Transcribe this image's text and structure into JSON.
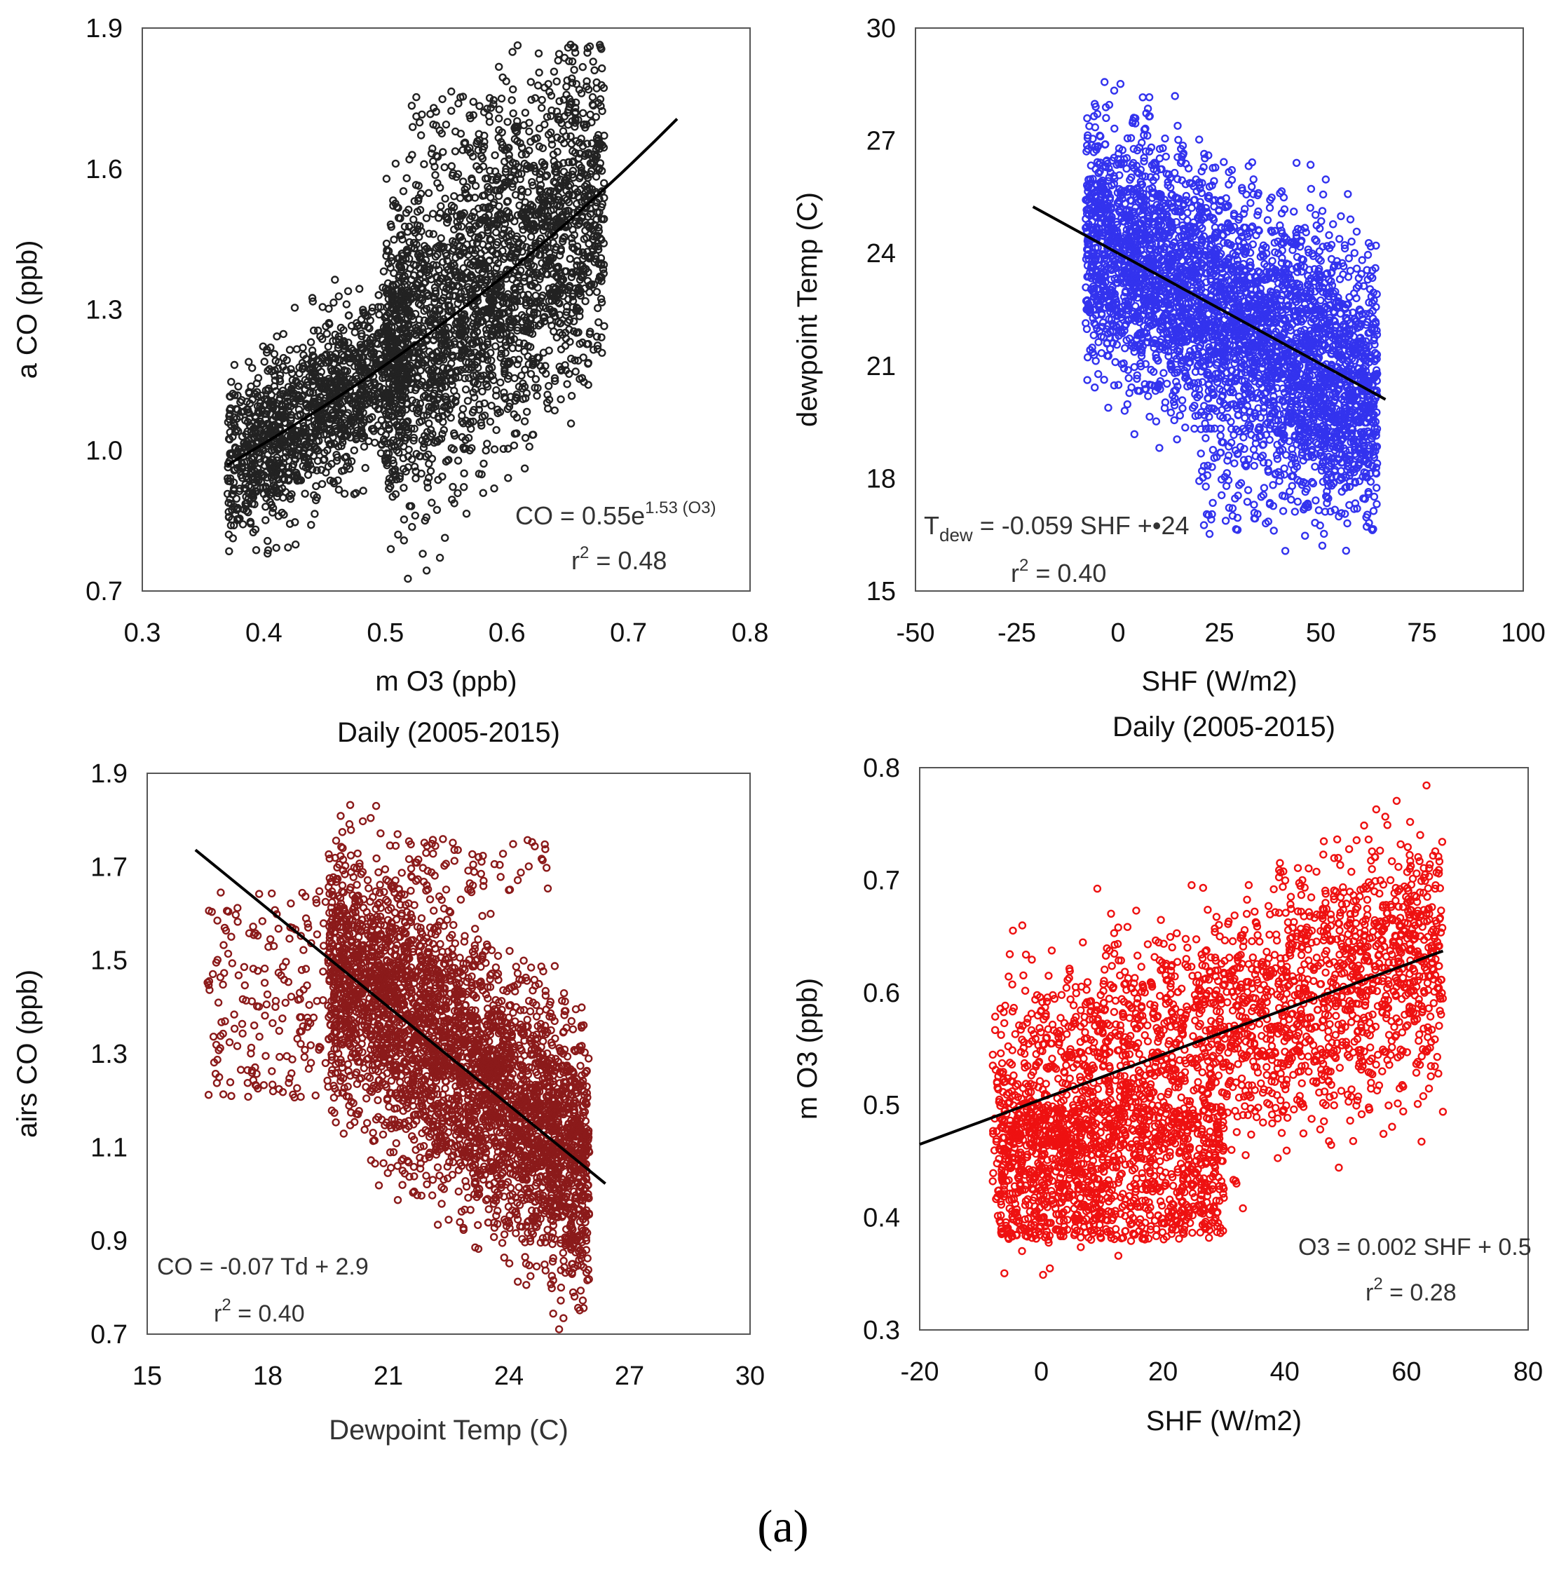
{
  "caption": "(a)",
  "chart_data": [
    {
      "type": "scatter",
      "id": "p1",
      "title": "",
      "xlabel": "m O3 (ppb)",
      "ylabel": "a CO (ppb)",
      "xlim": [
        0.3,
        0.8
      ],
      "ylim": [
        0.7,
        1.9
      ],
      "xticks": [
        "0.3",
        "0.4",
        "0.5",
        "0.6",
        "0.7",
        "0.8"
      ],
      "yticks": [
        "0.7",
        "1.0",
        "1.3",
        "1.6",
        "1.9"
      ],
      "marker_color": "#222222",
      "fit": {
        "kind": "exp",
        "a": 0.55,
        "b": 1.53,
        "x_range": [
          0.37,
          0.74
        ]
      },
      "cloud": [
        {
          "n": 1400,
          "x": [
            0.37,
            0.52
          ],
          "y_center": "fit",
          "y_spread": 0.09
        },
        {
          "n": 2200,
          "x": [
            0.5,
            0.68
          ],
          "y_center": "fit",
          "y_spread": 0.17
        },
        {
          "n": 40,
          "x": [
            0.52,
            0.6
          ],
          "y": [
            1.62,
            1.76
          ]
        }
      ],
      "annotations": [
        {
          "prefix": "CO = 0.55e",
          "sup": "1.53 (O3)"
        },
        {
          "prefix": "r",
          "sup": "2",
          "suffix": " = 0.48"
        }
      ]
    },
    {
      "type": "scatter",
      "id": "p2",
      "title": "",
      "xlabel": "SHF (W/m2)",
      "ylabel": "dewpoint Temp (C)",
      "xlim": [
        -50,
        100
      ],
      "ylim": [
        15,
        30
      ],
      "xticks": [
        "-50",
        "-25",
        "0",
        "25",
        "50",
        "75",
        "100"
      ],
      "yticks": [
        "15",
        "18",
        "21",
        "24",
        "27",
        "30"
      ],
      "marker_color": "#3333ee",
      "fit": {
        "kind": "linear",
        "slope": -0.059,
        "intercept": 24,
        "x_range": [
          -21,
          66
        ]
      },
      "cloud": [
        {
          "n": 3800,
          "x": [
            -8,
            64
          ],
          "y_center": "fit",
          "y_spread": 1.7
        },
        {
          "n": 150,
          "x": [
            20,
            62
          ],
          "y": [
            16.5,
            20
          ]
        }
      ],
      "annotations": [
        {
          "prefix": "T",
          "sub": "dew",
          "suffix": " = -0.059 SHF +•24"
        },
        {
          "prefix": "r",
          "sup": "2",
          "suffix": " = 0.40"
        }
      ]
    },
    {
      "type": "scatter",
      "id": "p3",
      "title": "Daily (2005-2015)",
      "xlabel": "Dewpoint Temp (C)",
      "ylabel": "airs CO (ppb)",
      "xlim": [
        15,
        30
      ],
      "ylim": [
        0.7,
        1.9
      ],
      "xticks": [
        "15",
        "18",
        "21",
        "24",
        "27",
        "30"
      ],
      "yticks": [
        "0.7",
        "0.9",
        "1.1",
        "1.3",
        "1.5",
        "1.7",
        "1.9"
      ],
      "marker_color": "#8b1a1a",
      "fit": {
        "kind": "linear",
        "slope": -0.07,
        "intercept": 2.87,
        "x_range": [
          16.2,
          26.4
        ]
      },
      "cloud": [
        {
          "n": 3600,
          "x": [
            19.5,
            26
          ],
          "y_center": "fit",
          "y_spread": 0.14
        },
        {
          "n": 200,
          "x": [
            16.5,
            20
          ],
          "y": [
            1.2,
            1.65
          ]
        },
        {
          "n": 60,
          "x": [
            21.5,
            25
          ],
          "y": [
            1.65,
            1.76
          ]
        }
      ],
      "annotations": [
        {
          "prefix": "CO = -0.07 Td + 2.9"
        },
        {
          "prefix": "r",
          "sup": "2",
          "suffix": " = 0.40"
        }
      ]
    },
    {
      "type": "scatter",
      "id": "p4",
      "title": "Daily (2005-2015)",
      "xlabel": "SHF (W/m2)",
      "ylabel": "m O3 (ppb)",
      "xlim": [
        -20,
        80
      ],
      "ylim": [
        0.3,
        0.8
      ],
      "xticks": [
        "-20",
        "0",
        "20",
        "40",
        "60",
        "80"
      ],
      "yticks": [
        "0.3",
        "0.4",
        "0.5",
        "0.6",
        "0.7",
        "0.8"
      ],
      "marker_color": "#ee1111",
      "fit": {
        "kind": "linear",
        "slope": 0.002,
        "intercept": 0.505,
        "x_range": [
          -20,
          66
        ]
      },
      "cloud": [
        {
          "n": 2400,
          "x": [
            -8,
            66
          ],
          "y_center": "fit",
          "y_spread": 0.055
        },
        {
          "n": 1000,
          "x": [
            -7,
            30
          ],
          "y": [
            0.38,
            0.5
          ]
        },
        {
          "n": 30,
          "x": [
            38,
            66
          ],
          "y": [
            0.66,
            0.74
          ]
        }
      ],
      "annotations": [
        {
          "prefix": "O3 = 0.002 SHF + 0.5"
        },
        {
          "prefix": "r",
          "sup": "2",
          "suffix": " = 0.28"
        }
      ]
    }
  ]
}
